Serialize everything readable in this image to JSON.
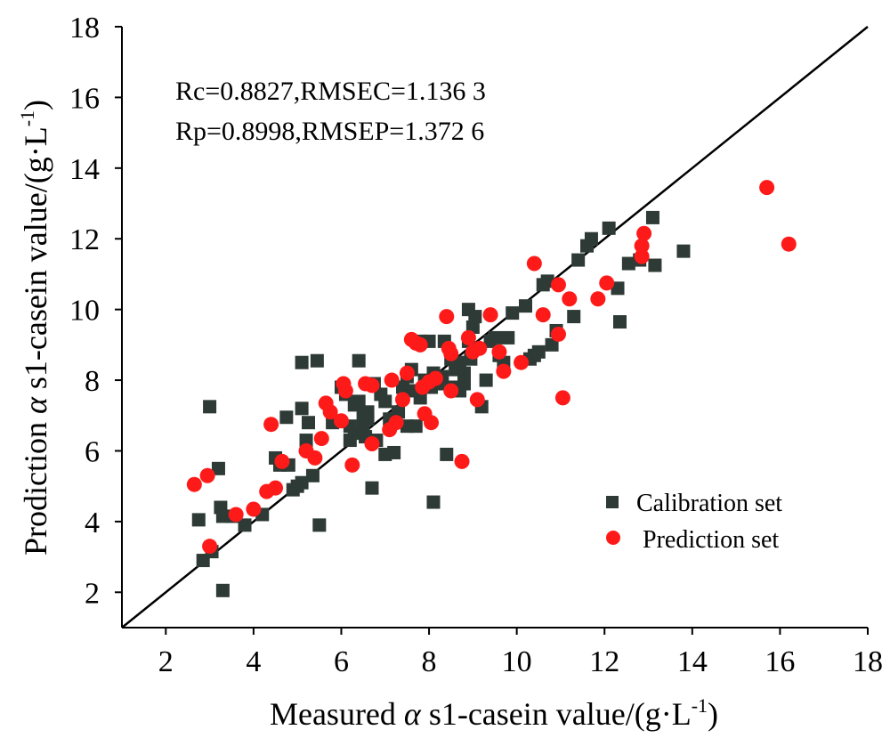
{
  "chart_data": {
    "type": "scatter",
    "xlabel": {
      "prefix": "Measured ",
      "greek": "α",
      "suffix": " s1-casein value/(g·L",
      "sup": "-1",
      "close": ")"
    },
    "ylabel": {
      "prefix": "Prodiction ",
      "greek": "α",
      "suffix": " s1-casein value/(g·L",
      "sup": "-1",
      "close": ")"
    },
    "xlim": [
      1,
      18
    ],
    "ylim": [
      1,
      18
    ],
    "xticks": [
      "2",
      "4",
      "6",
      "8",
      "10",
      "12",
      "14",
      "16",
      "18"
    ],
    "yticks": [
      "2",
      "4",
      "6",
      "8",
      "10",
      "12",
      "14",
      "16",
      "18"
    ],
    "annotations": [
      "Rc=0.8827,RMSEC=1.136 3",
      "Rp=0.8998,RMSEP=1.372 6"
    ],
    "reference_line": [
      [
        1,
        1
      ],
      [
        18,
        18
      ]
    ],
    "grid": false,
    "legend_position": "lower-right",
    "series": [
      {
        "name": "Calibration set",
        "marker": "square",
        "color": "#2e3a35",
        "points": [
          [
            3.0,
            7.25
          ],
          [
            2.75,
            4.05
          ],
          [
            2.85,
            2.9
          ],
          [
            3.05,
            3.15
          ],
          [
            3.2,
            5.5
          ],
          [
            3.25,
            4.4
          ],
          [
            3.3,
            4.15
          ],
          [
            3.3,
            2.05
          ],
          [
            3.5,
            4.15
          ],
          [
            3.8,
            3.9
          ],
          [
            4.2,
            4.2
          ],
          [
            4.5,
            5.8
          ],
          [
            4.6,
            5.6
          ],
          [
            4.75,
            6.95
          ],
          [
            4.8,
            5.6
          ],
          [
            4.9,
            4.9
          ],
          [
            5.0,
            5.0
          ],
          [
            5.1,
            5.1
          ],
          [
            5.1,
            7.2
          ],
          [
            5.1,
            8.5
          ],
          [
            5.2,
            6.3
          ],
          [
            5.25,
            6.8
          ],
          [
            5.35,
            5.3
          ],
          [
            5.45,
            8.55
          ],
          [
            5.5,
            3.9
          ],
          [
            5.8,
            6.8
          ],
          [
            6.0,
            7.8
          ],
          [
            6.1,
            7.6
          ],
          [
            6.2,
            6.7
          ],
          [
            6.2,
            6.3
          ],
          [
            6.3,
            6.5
          ],
          [
            6.3,
            7.3
          ],
          [
            6.4,
            8.55
          ],
          [
            6.4,
            7.4
          ],
          [
            6.5,
            7.0
          ],
          [
            6.5,
            6.7
          ],
          [
            6.55,
            6.4
          ],
          [
            6.6,
            7.1
          ],
          [
            6.6,
            6.9
          ],
          [
            6.7,
            4.95
          ],
          [
            6.75,
            7.9
          ],
          [
            6.8,
            6.3
          ],
          [
            6.9,
            7.6
          ],
          [
            7.0,
            5.9
          ],
          [
            7.0,
            7.4
          ],
          [
            7.1,
            6.9
          ],
          [
            7.2,
            5.95
          ],
          [
            7.3,
            7.1
          ],
          [
            7.4,
            7.8
          ],
          [
            7.5,
            8.1
          ],
          [
            7.5,
            6.7
          ],
          [
            7.6,
            8.3
          ],
          [
            7.6,
            7.7
          ],
          [
            7.7,
            6.7
          ],
          [
            7.8,
            7.5
          ],
          [
            7.8,
            9.1
          ],
          [
            7.9,
            8.0
          ],
          [
            8.0,
            9.1
          ],
          [
            8.05,
            7.8
          ],
          [
            8.1,
            8.2
          ],
          [
            8.1,
            4.55
          ],
          [
            8.2,
            7.9
          ],
          [
            8.3,
            8.1
          ],
          [
            8.35,
            9.1
          ],
          [
            8.4,
            5.9
          ],
          [
            8.5,
            8.6
          ],
          [
            8.5,
            7.8
          ],
          [
            8.6,
            8.3
          ],
          [
            8.7,
            8.5
          ],
          [
            8.7,
            7.7
          ],
          [
            8.8,
            7.9
          ],
          [
            8.8,
            8.2
          ],
          [
            8.9,
            9.1
          ],
          [
            8.9,
            10.0
          ],
          [
            8.95,
            8.6
          ],
          [
            9.0,
            9.5
          ],
          [
            9.05,
            9.8
          ],
          [
            9.2,
            7.25
          ],
          [
            9.3,
            8.0
          ],
          [
            9.4,
            9.1
          ],
          [
            9.5,
            9.2
          ],
          [
            9.6,
            8.7
          ],
          [
            9.7,
            8.5
          ],
          [
            9.8,
            9.2
          ],
          [
            9.9,
            9.9
          ],
          [
            10.2,
            10.1
          ],
          [
            10.3,
            8.6
          ],
          [
            10.4,
            8.7
          ],
          [
            10.5,
            8.8
          ],
          [
            10.6,
            10.7
          ],
          [
            10.7,
            10.8
          ],
          [
            10.8,
            9.0
          ],
          [
            10.9,
            9.4
          ],
          [
            11.3,
            9.8
          ],
          [
            11.4,
            11.4
          ],
          [
            11.6,
            11.8
          ],
          [
            11.7,
            12.0
          ],
          [
            12.1,
            12.3
          ],
          [
            12.3,
            10.6
          ],
          [
            12.35,
            9.65
          ],
          [
            12.55,
            11.3
          ],
          [
            12.8,
            11.4
          ],
          [
            13.1,
            12.6
          ],
          [
            13.15,
            11.25
          ],
          [
            13.8,
            11.65
          ]
        ]
      },
      {
        "name": "Prediction set",
        "marker": "circle",
        "color": "#ff1a1a",
        "points": [
          [
            2.65,
            5.05
          ],
          [
            2.95,
            5.3
          ],
          [
            3.0,
            3.3
          ],
          [
            3.6,
            4.2
          ],
          [
            4.0,
            4.35
          ],
          [
            4.3,
            4.85
          ],
          [
            4.4,
            6.75
          ],
          [
            4.5,
            4.95
          ],
          [
            4.65,
            5.7
          ],
          [
            5.2,
            6.0
          ],
          [
            5.4,
            5.8
          ],
          [
            5.55,
            6.35
          ],
          [
            5.65,
            7.35
          ],
          [
            5.75,
            7.1
          ],
          [
            6.0,
            6.85
          ],
          [
            6.05,
            7.9
          ],
          [
            6.1,
            7.7
          ],
          [
            6.25,
            5.6
          ],
          [
            6.55,
            7.9
          ],
          [
            6.7,
            7.85
          ],
          [
            6.7,
            6.2
          ],
          [
            7.1,
            6.6
          ],
          [
            7.15,
            8.0
          ],
          [
            7.25,
            6.8
          ],
          [
            7.4,
            7.45
          ],
          [
            7.5,
            8.2
          ],
          [
            7.6,
            9.15
          ],
          [
            7.7,
            9.05
          ],
          [
            7.8,
            9.0
          ],
          [
            7.85,
            7.8
          ],
          [
            7.9,
            7.05
          ],
          [
            8.0,
            7.95
          ],
          [
            8.05,
            6.8
          ],
          [
            8.15,
            8.05
          ],
          [
            8.4,
            9.8
          ],
          [
            8.45,
            8.9
          ],
          [
            8.5,
            7.7
          ],
          [
            8.5,
            8.75
          ],
          [
            8.75,
            5.7
          ],
          [
            8.9,
            9.2
          ],
          [
            9.0,
            8.8
          ],
          [
            9.1,
            7.45
          ],
          [
            9.15,
            8.9
          ],
          [
            9.4,
            9.85
          ],
          [
            9.6,
            8.8
          ],
          [
            9.7,
            8.25
          ],
          [
            10.1,
            8.5
          ],
          [
            10.4,
            11.3
          ],
          [
            10.6,
            9.85
          ],
          [
            10.95,
            9.3
          ],
          [
            10.95,
            10.7
          ],
          [
            11.05,
            7.5
          ],
          [
            11.2,
            10.3
          ],
          [
            11.85,
            10.3
          ],
          [
            12.05,
            10.75
          ],
          [
            12.85,
            11.5
          ],
          [
            12.85,
            11.8
          ],
          [
            12.9,
            12.15
          ],
          [
            15.7,
            13.45
          ],
          [
            16.2,
            11.85
          ]
        ]
      }
    ]
  }
}
